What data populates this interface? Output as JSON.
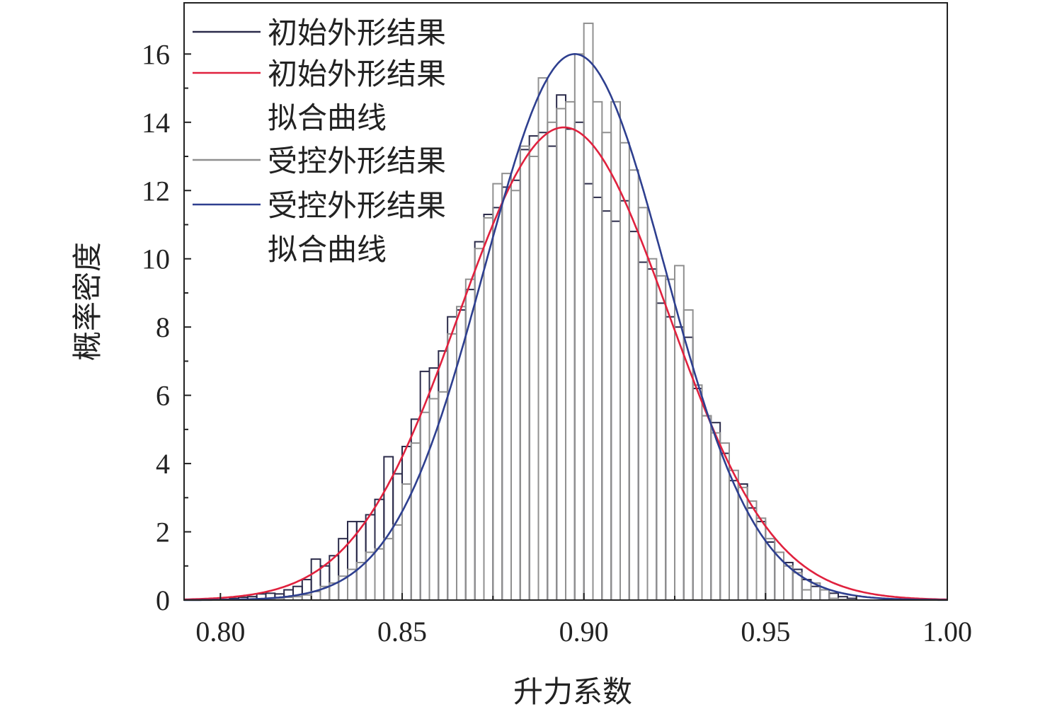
{
  "chart_data": {
    "type": "bar",
    "xlabel": "升力系数",
    "ylabel": "概率密度",
    "xlim": [
      0.79,
      1.0
    ],
    "ylim": [
      0,
      17.5
    ],
    "xticks": [
      "0.80",
      "0.85",
      "0.90",
      "0.95",
      "1.00"
    ],
    "yticks": [
      "0",
      "2",
      "4",
      "6",
      "8",
      "10",
      "12",
      "14",
      "16"
    ],
    "legend_position": "top-left",
    "legend": [
      {
        "text": "初始外形结果",
        "color": "#2b2b4a",
        "kind": "hist"
      },
      {
        "text": "初始外形结果",
        "color": "#e0213e",
        "kind": "line"
      },
      {
        "text": "拟合曲线",
        "color": "#e0213e",
        "kind": "none"
      },
      {
        "text": "受控外形结果",
        "color": "#909090",
        "kind": "hist"
      },
      {
        "text": "受控外形结果",
        "color": "#2e3f8f",
        "kind": "line"
      },
      {
        "text": "拟合曲线",
        "color": "#2e3f8f",
        "kind": "none"
      }
    ],
    "bin_width": 0.0025,
    "series": [
      {
        "name": "初始外形结果",
        "kind": "histogram",
        "color": "#2b2b4a",
        "bin_start": [
          0.8,
          0.8025,
          0.805,
          0.8075,
          0.81,
          0.8125,
          0.815,
          0.8175,
          0.82,
          0.8225,
          0.825,
          0.8275,
          0.83,
          0.8325,
          0.835,
          0.8375,
          0.84,
          0.8425,
          0.845,
          0.8475,
          0.85,
          0.8525,
          0.855,
          0.8575,
          0.86,
          0.8625,
          0.865,
          0.8675,
          0.87,
          0.8725,
          0.875,
          0.8775,
          0.88,
          0.8825,
          0.885,
          0.8875,
          0.89,
          0.8925,
          0.895,
          0.8975,
          0.9,
          0.9025,
          0.905,
          0.9075,
          0.91,
          0.9125,
          0.915,
          0.9175,
          0.92,
          0.9225,
          0.925,
          0.9275,
          0.93,
          0.9325,
          0.935,
          0.9375,
          0.94,
          0.9425,
          0.945,
          0.9475,
          0.95,
          0.9525,
          0.955,
          0.9575,
          0.96,
          0.9625,
          0.965,
          0.9675,
          0.97,
          0.9725
        ],
        "density": [
          0.02,
          0.05,
          0.08,
          0.1,
          0.18,
          0.2,
          0.18,
          0.3,
          0.4,
          0.6,
          1.2,
          1.0,
          1.3,
          1.8,
          2.3,
          2.3,
          2.5,
          2.95,
          4.2,
          3.7,
          4.5,
          5.3,
          6.7,
          6.8,
          7.3,
          8.3,
          8.5,
          9.1,
          10.5,
          11.3,
          11.5,
          12.1,
          12.3,
          13.2,
          13.6,
          13.7,
          13.3,
          14.8,
          13.8,
          14.0,
          12.2,
          11.8,
          11.4,
          11.1,
          11.7,
          10.8,
          9.9,
          9.7,
          8.7,
          8.3,
          8.0,
          7.7,
          6.2,
          5.4,
          5.2,
          4.3,
          3.5,
          3.4,
          2.7,
          2.3,
          1.7,
          1.4,
          1.1,
          0.9,
          0.6,
          0.4,
          0.3,
          0.2,
          0.1,
          0.05
        ]
      },
      {
        "name": "受控外形结果",
        "kind": "histogram",
        "color": "#909090",
        "bin_start": [
          0.81,
          0.8125,
          0.815,
          0.8175,
          0.82,
          0.8225,
          0.825,
          0.8275,
          0.83,
          0.8325,
          0.835,
          0.8375,
          0.84,
          0.8425,
          0.845,
          0.8475,
          0.85,
          0.8525,
          0.855,
          0.8575,
          0.86,
          0.8625,
          0.865,
          0.8675,
          0.87,
          0.8725,
          0.875,
          0.8775,
          0.88,
          0.8825,
          0.885,
          0.8875,
          0.89,
          0.8925,
          0.895,
          0.8975,
          0.9,
          0.9025,
          0.905,
          0.9075,
          0.91,
          0.9125,
          0.915,
          0.9175,
          0.92,
          0.9225,
          0.925,
          0.9275,
          0.93,
          0.9325,
          0.935,
          0.9375,
          0.94,
          0.9425,
          0.945,
          0.9475,
          0.95,
          0.9525,
          0.955,
          0.9575,
          0.96,
          0.9625,
          0.965,
          0.9675,
          0.97
        ],
        "density": [
          0.02,
          0.03,
          0.05,
          0.08,
          0.1,
          0.15,
          0.25,
          0.4,
          0.5,
          0.7,
          0.9,
          1.1,
          1.4,
          1.5,
          1.8,
          2.2,
          3.4,
          4.6,
          5.5,
          5.9,
          6.1,
          7.8,
          8.6,
          9.4,
          10.3,
          11.2,
          12.2,
          12.5,
          12.0,
          13.3,
          13.0,
          15.3,
          14.0,
          14.4,
          14.6,
          16.0,
          16.9,
          14.6,
          13.7,
          14.6,
          13.4,
          12.6,
          11.5,
          10.0,
          9.5,
          9.4,
          9.8,
          8.5,
          6.3,
          5.4,
          4.9,
          4.6,
          3.8,
          3.3,
          2.9,
          2.4,
          1.8,
          1.4,
          1.0,
          0.8,
          0.3,
          0.5,
          0.3,
          0.05,
          0.02
        ]
      },
      {
        "name": "初始外形结果 拟合曲线",
        "kind": "normal_fit",
        "color": "#e0213e",
        "mean": 0.8945,
        "std": 0.0288,
        "peak": 13.85
      },
      {
        "name": "受控外形结果 拟合曲线",
        "kind": "normal_fit",
        "color": "#2e3f8f",
        "mean": 0.8975,
        "std": 0.0249,
        "peak": 16.0
      }
    ]
  }
}
